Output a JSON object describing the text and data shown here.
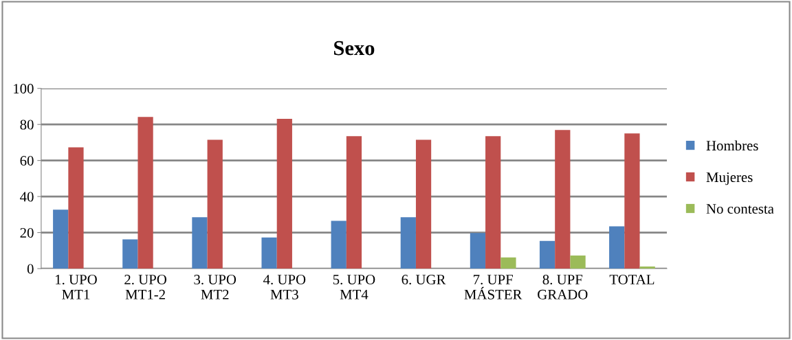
{
  "chart_data": {
    "type": "bar",
    "title": "Sexo",
    "categories": [
      "1. UPO\nMT1",
      "2. UPO\nMT1-2",
      "3. UPO\nMT2",
      "4. UPO\nMT3",
      "5. UPO\nMT4",
      "6. UGR",
      "7. UPF\nMÁSTER",
      "8. UPF\nGRADO",
      "TOTAL"
    ],
    "series": [
      {
        "name": "Hombres",
        "color": "#4f81bd",
        "values": [
          32.7,
          16.2,
          28.5,
          17.3,
          26.5,
          28.5,
          19.7,
          15.4,
          23.5
        ]
      },
      {
        "name": "Mujeres",
        "color": "#c0504d",
        "values": [
          67.3,
          84.2,
          71.5,
          83.1,
          73.5,
          71.5,
          73.5,
          76.9,
          75.0
        ]
      },
      {
        "name": "No contesta",
        "color": "#9bbb59",
        "values": [
          null,
          null,
          null,
          null,
          null,
          null,
          6.2,
          7.3,
          1.2
        ]
      }
    ],
    "ylim": [
      0,
      100
    ],
    "yticks": [
      0,
      20,
      40,
      60,
      80,
      100
    ],
    "grid": "y",
    "legend": "right"
  }
}
